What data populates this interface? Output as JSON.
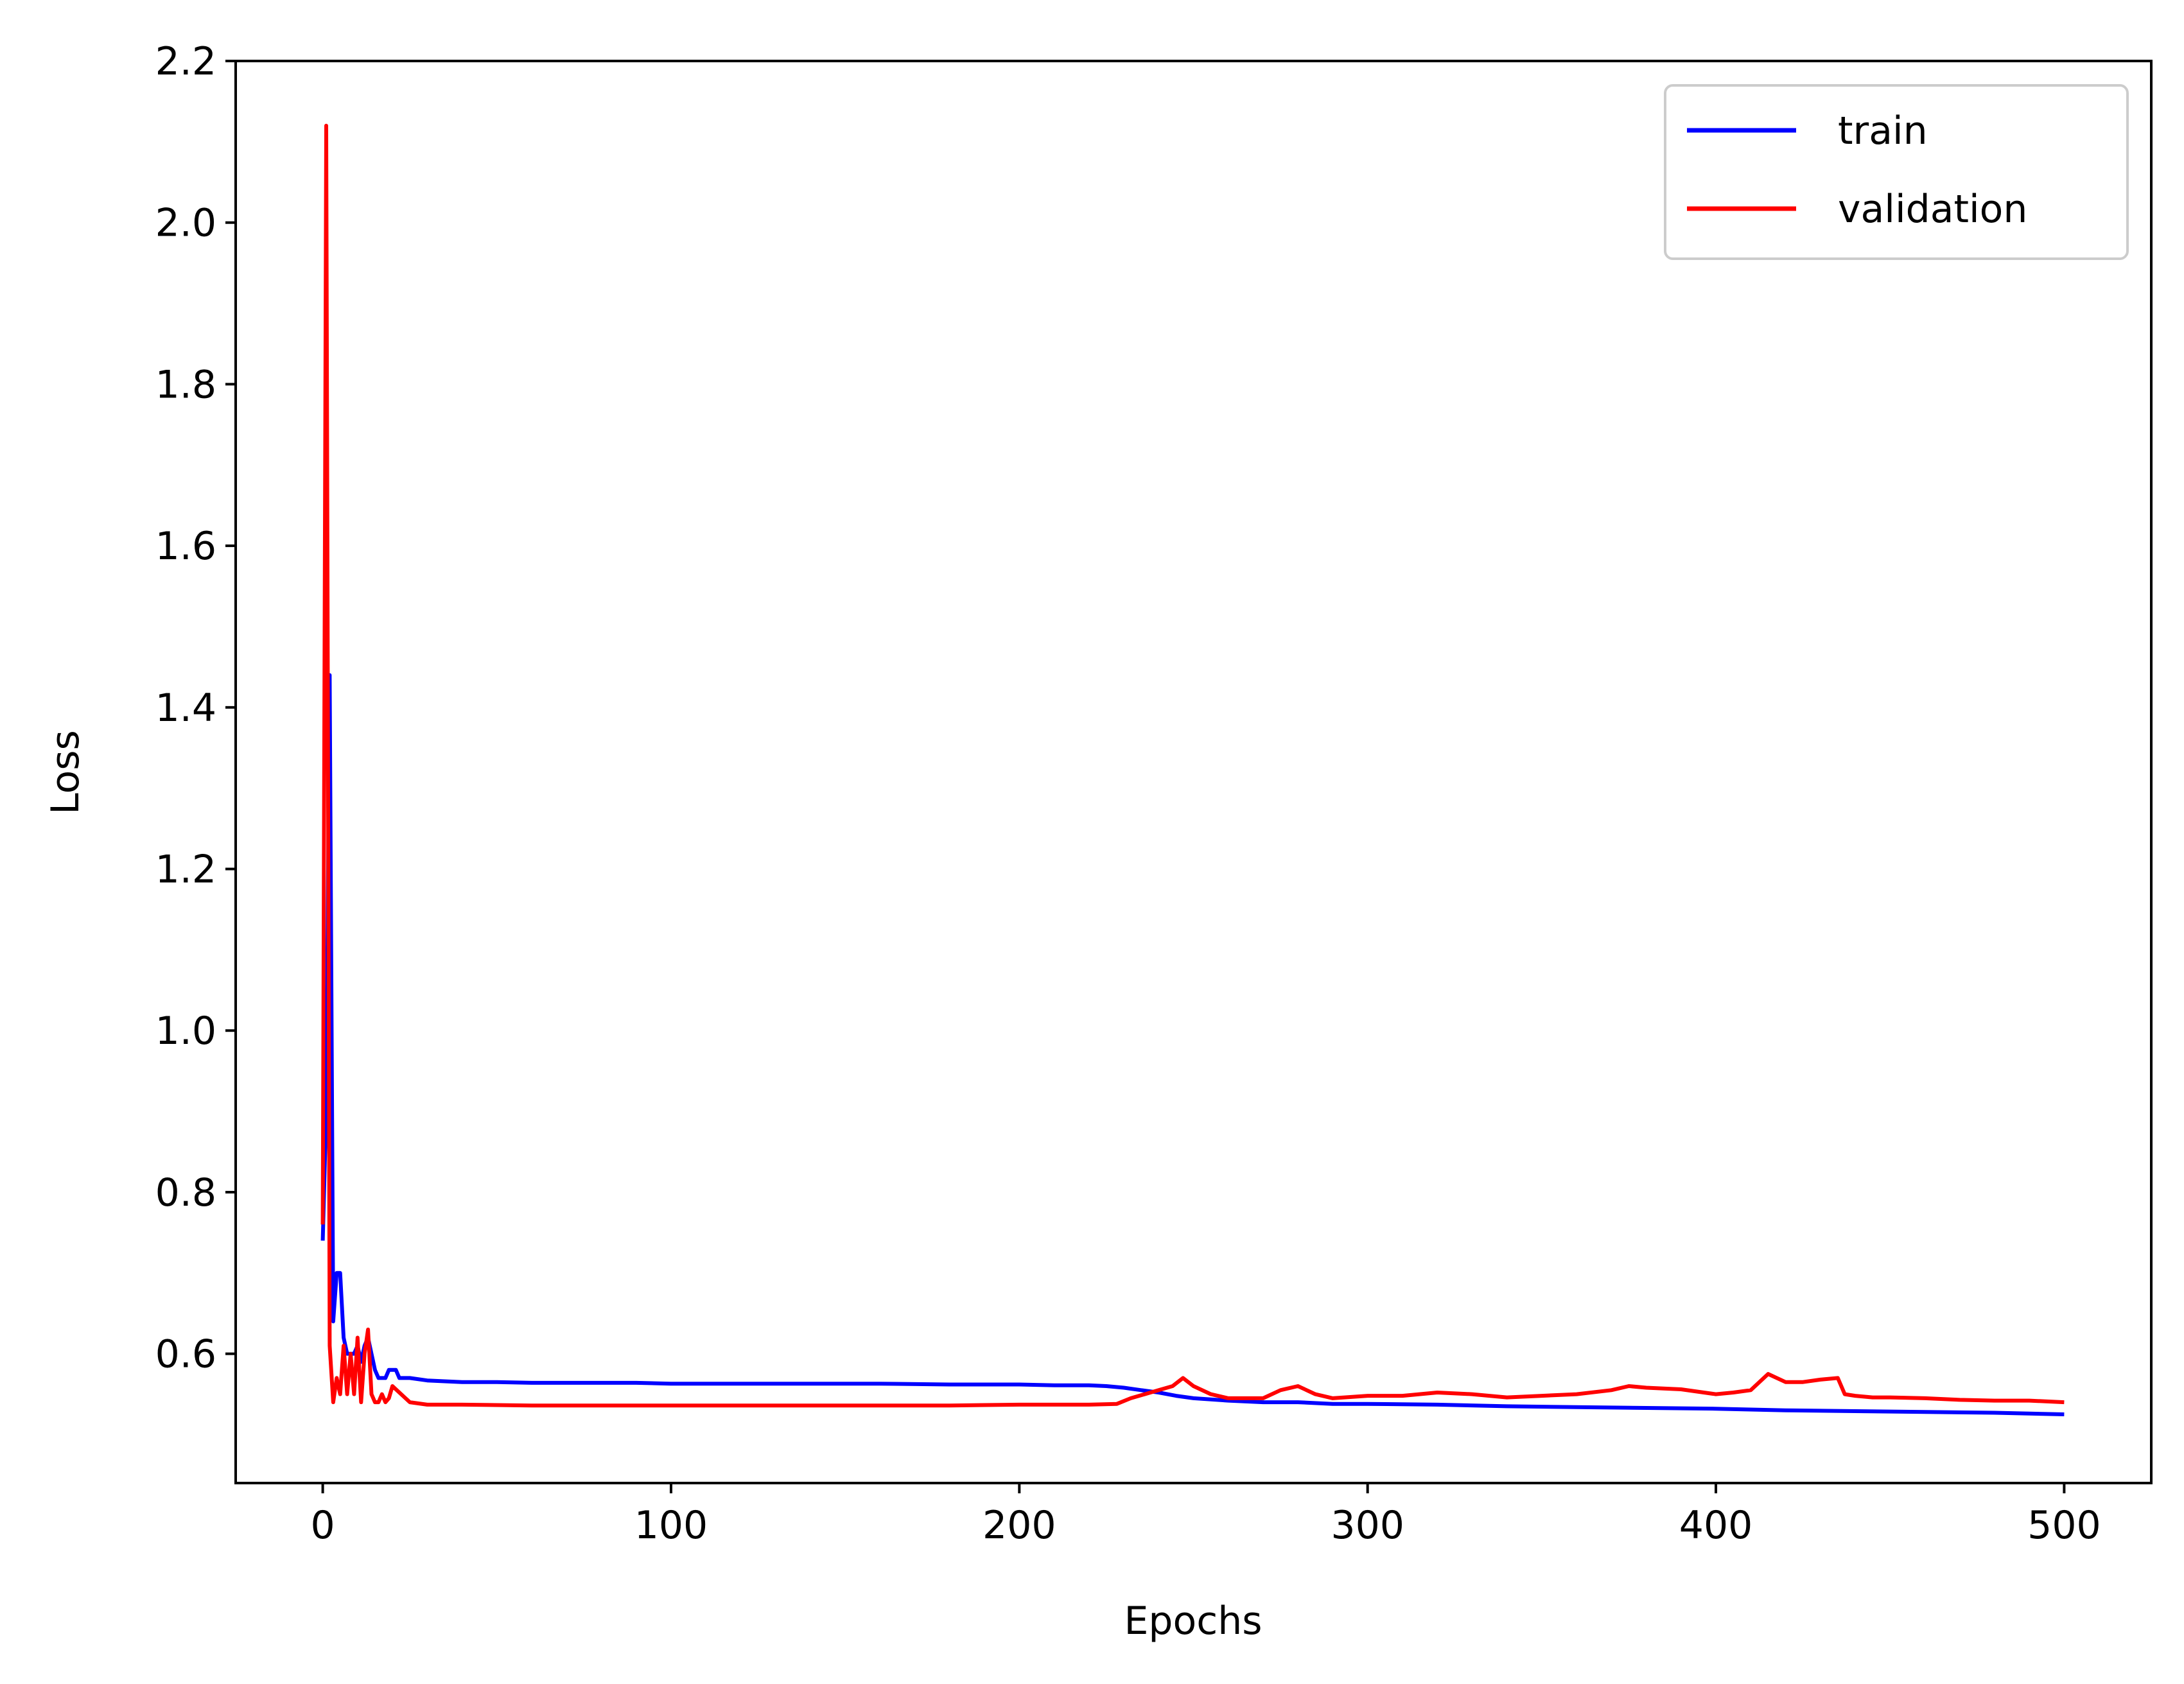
{
  "chart_data": {
    "type": "line",
    "title": "",
    "xlabel": "Epochs",
    "ylabel": "Loss",
    "xlim": [
      -25,
      525
    ],
    "ylim": [
      0.44,
      2.2
    ],
    "xticks": [
      0,
      100,
      200,
      300,
      400,
      500
    ],
    "yticks": [
      0.6,
      0.8,
      1.0,
      1.2,
      1.4,
      1.6,
      1.8,
      2.0,
      2.2
    ],
    "xtick_labels": [
      "0",
      "100",
      "200",
      "300",
      "400",
      "500"
    ],
    "ytick_labels": [
      "0.6",
      "0.8",
      "1.0",
      "1.2",
      "1.4",
      "1.6",
      "1.8",
      "2.0",
      "2.2"
    ],
    "grid": false,
    "legend_position": "top-right",
    "series": [
      {
        "name": "train",
        "color": "#0000ff",
        "x": [
          0,
          1,
          2,
          3,
          4,
          5,
          6,
          7,
          8,
          9,
          10,
          11,
          12,
          13,
          14,
          15,
          16,
          17,
          18,
          19,
          20,
          21,
          22,
          23,
          24,
          25,
          30,
          40,
          50,
          60,
          70,
          80,
          90,
          100,
          120,
          140,
          160,
          180,
          200,
          210,
          220,
          225,
          230,
          235,
          240,
          245,
          250,
          260,
          270,
          280,
          290,
          300,
          320,
          340,
          360,
          380,
          400,
          420,
          440,
          460,
          480,
          490,
          500
        ],
        "y": [
          0.74,
          0.9,
          1.44,
          0.64,
          0.7,
          0.7,
          0.62,
          0.6,
          0.6,
          0.6,
          0.61,
          0.59,
          0.61,
          0.62,
          0.6,
          0.58,
          0.57,
          0.57,
          0.57,
          0.58,
          0.58,
          0.58,
          0.57,
          0.57,
          0.57,
          0.57,
          0.567,
          0.565,
          0.565,
          0.564,
          0.564,
          0.564,
          0.564,
          0.563,
          0.563,
          0.563,
          0.563,
          0.562,
          0.562,
          0.561,
          0.561,
          0.56,
          0.558,
          0.555,
          0.552,
          0.548,
          0.545,
          0.542,
          0.54,
          0.54,
          0.538,
          0.538,
          0.537,
          0.535,
          0.534,
          0.533,
          0.532,
          0.53,
          0.529,
          0.528,
          0.527,
          0.526,
          0.525
        ]
      },
      {
        "name": "validation",
        "color": "#ff0000",
        "x": [
          0,
          1,
          2,
          3,
          4,
          5,
          6,
          7,
          8,
          9,
          10,
          11,
          12,
          13,
          14,
          15,
          16,
          17,
          18,
          19,
          20,
          25,
          30,
          40,
          60,
          80,
          100,
          120,
          140,
          160,
          180,
          200,
          220,
          228,
          232,
          236,
          240,
          244,
          247,
          250,
          255,
          260,
          265,
          270,
          275,
          280,
          285,
          290,
          300,
          310,
          320,
          330,
          340,
          350,
          360,
          370,
          375,
          380,
          390,
          400,
          405,
          410,
          415,
          420,
          425,
          430,
          435,
          437,
          440,
          445,
          450,
          460,
          470,
          480,
          490,
          500
        ],
        "y": [
          0.76,
          2.12,
          0.61,
          0.54,
          0.57,
          0.55,
          0.61,
          0.55,
          0.6,
          0.55,
          0.62,
          0.54,
          0.6,
          0.63,
          0.55,
          0.54,
          0.54,
          0.55,
          0.54,
          0.545,
          0.56,
          0.54,
          0.537,
          0.537,
          0.536,
          0.536,
          0.536,
          0.536,
          0.536,
          0.536,
          0.536,
          0.537,
          0.537,
          0.538,
          0.545,
          0.55,
          0.555,
          0.56,
          0.57,
          0.56,
          0.55,
          0.545,
          0.545,
          0.545,
          0.555,
          0.56,
          0.55,
          0.545,
          0.548,
          0.548,
          0.552,
          0.55,
          0.546,
          0.548,
          0.55,
          0.555,
          0.56,
          0.558,
          0.556,
          0.55,
          0.552,
          0.555,
          0.575,
          0.565,
          0.565,
          0.568,
          0.57,
          0.55,
          0.548,
          0.546,
          0.546,
          0.545,
          0.543,
          0.542,
          0.542,
          0.54
        ]
      }
    ]
  }
}
